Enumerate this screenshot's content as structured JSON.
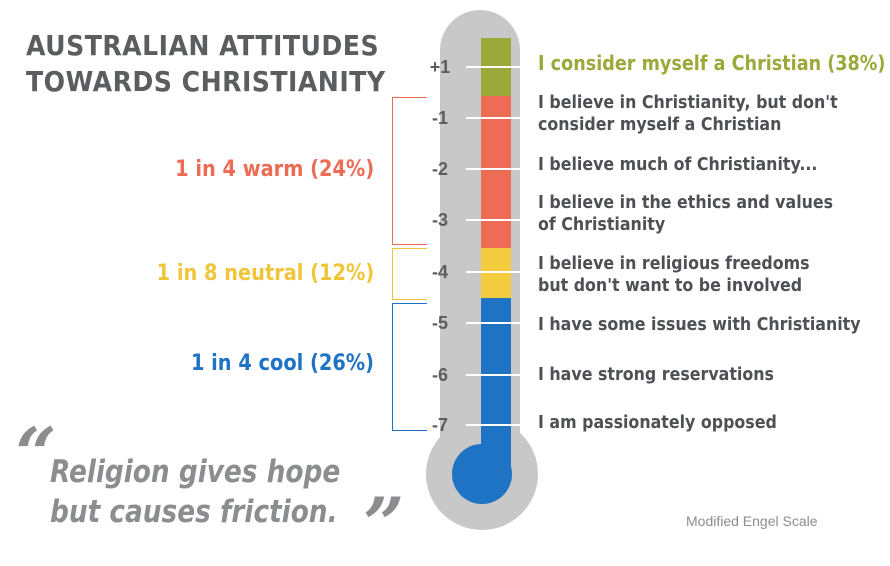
{
  "title": {
    "line1": "AUSTRALIAN ATTITUDES",
    "line2": "TOWARDS CHRISTIANITY"
  },
  "scale": [
    {
      "value": "+1",
      "statement": "I consider myself a Christian (38%)"
    },
    {
      "value": "-1",
      "statement": "I believe in Christianity, but don't\nconsider myself a Christian"
    },
    {
      "value": "-2",
      "statement": "I believe much of Christianity..."
    },
    {
      "value": "-3",
      "statement": "I believe in the ethics and values\nof Christianity"
    },
    {
      "value": "-4",
      "statement": "I believe in religious freedoms\nbut don't want to be involved"
    },
    {
      "value": "-5",
      "statement": "I have some issues with Christianity"
    },
    {
      "value": "-6",
      "statement": "I have strong reservations"
    },
    {
      "value": "-7",
      "statement": "I am passionately opposed"
    }
  ],
  "groups": {
    "warm": "1 in 4 warm (24%)",
    "neutral": "1 in 8 neutral (12%)",
    "cool": "1 in 4 cool (26%)"
  },
  "quote": {
    "open_mark": "“",
    "line1": "Religion gives hope",
    "line2": "but causes friction.",
    "close_mark": "”"
  },
  "source": "Modified Engel Scale",
  "colors": {
    "green": "#9aa93a",
    "red": "#ee6c55",
    "yellow": "#f3cc3f",
    "blue": "#1f73c4",
    "gray": "#c8c8c8"
  }
}
